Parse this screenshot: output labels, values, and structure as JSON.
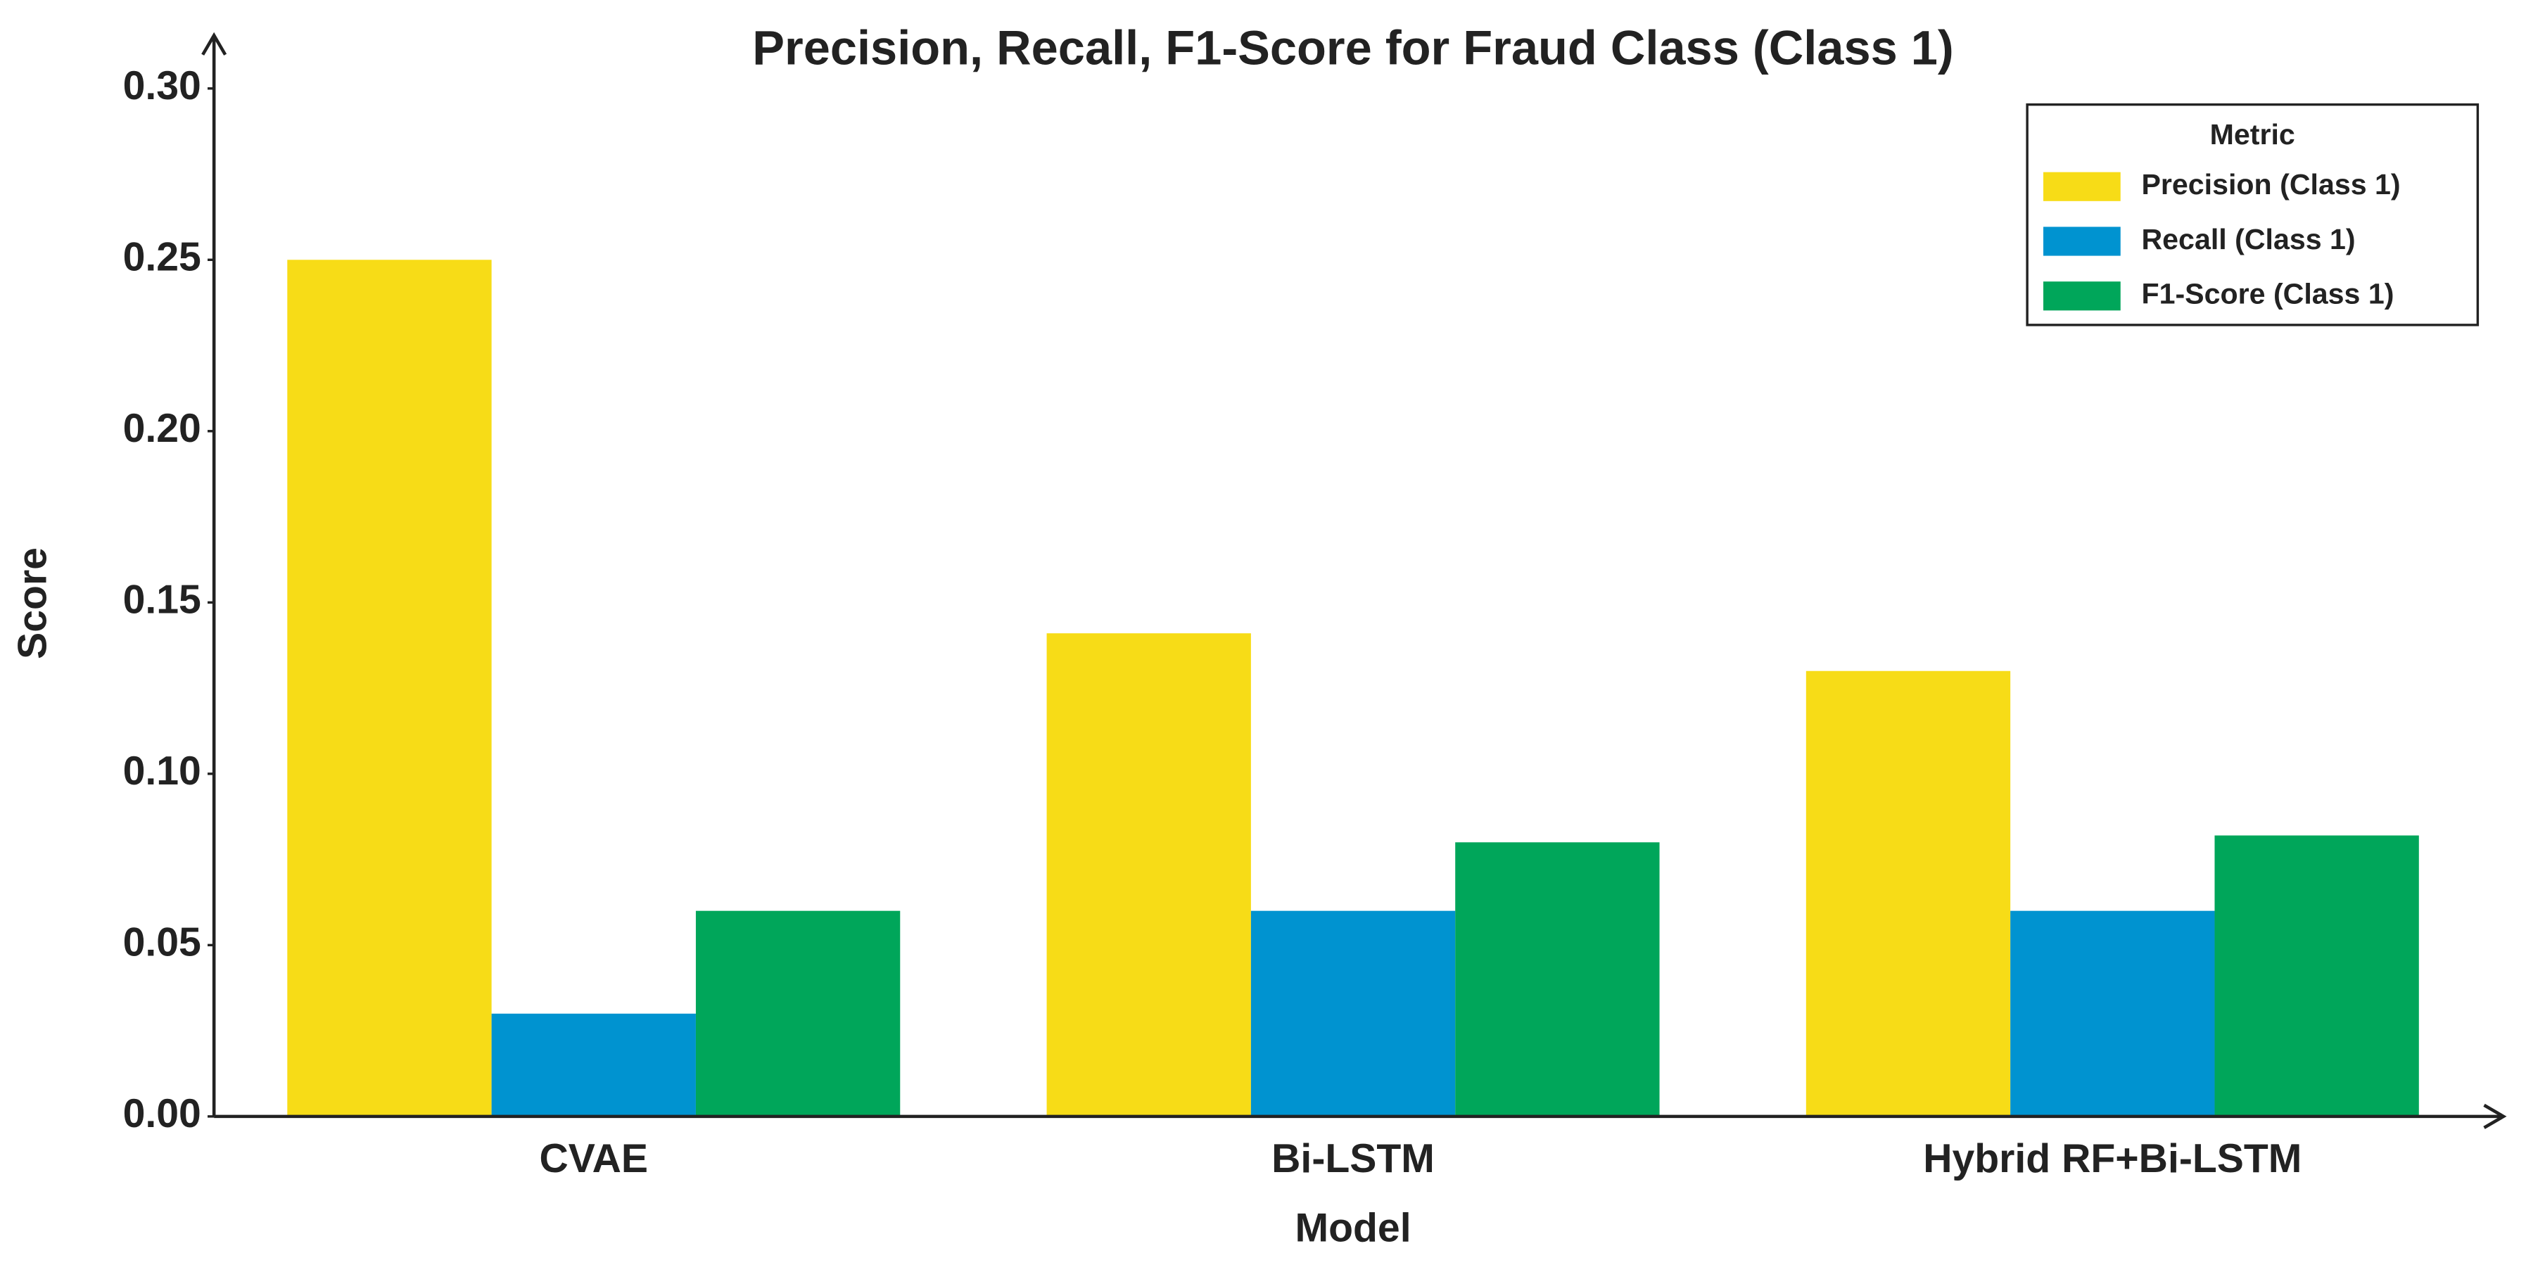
{
  "chart_data": {
    "type": "bar",
    "title": "Precision, Recall, F1-Score for Fraud Class (Class 1)",
    "xlabel": "Model",
    "ylabel": "Score",
    "categories": [
      "CVAE",
      "Bi-LSTM",
      "Hybrid RF+Bi-LSTM"
    ],
    "series": [
      {
        "name": "Precision (Class 1)",
        "color": "#f7dc17",
        "values": [
          0.25,
          0.141,
          0.13
        ]
      },
      {
        "name": "Recall (Class 1)",
        "color": "#0093d0",
        "values": [
          0.03,
          0.06,
          0.06
        ]
      },
      {
        "name": "F1-Score (Class 1)",
        "color": "#00a65a",
        "values": [
          0.06,
          0.08,
          0.082
        ]
      }
    ],
    "legend_title": "Metric",
    "legend": "upper right",
    "ylim": [
      0,
      0.3
    ],
    "yticks": [
      {
        "value": 0,
        "label": "0.00"
      },
      {
        "value": 0.05,
        "label": "0.05"
      },
      {
        "value": 0.1,
        "label": "0.10"
      },
      {
        "value": 0.15,
        "label": "0.15"
      },
      {
        "value": 0.2,
        "label": "0.20"
      },
      {
        "value": 0.25,
        "label": "0.25"
      },
      {
        "value": 0.3,
        "label": "0.30"
      }
    ],
    "grid": false
  }
}
